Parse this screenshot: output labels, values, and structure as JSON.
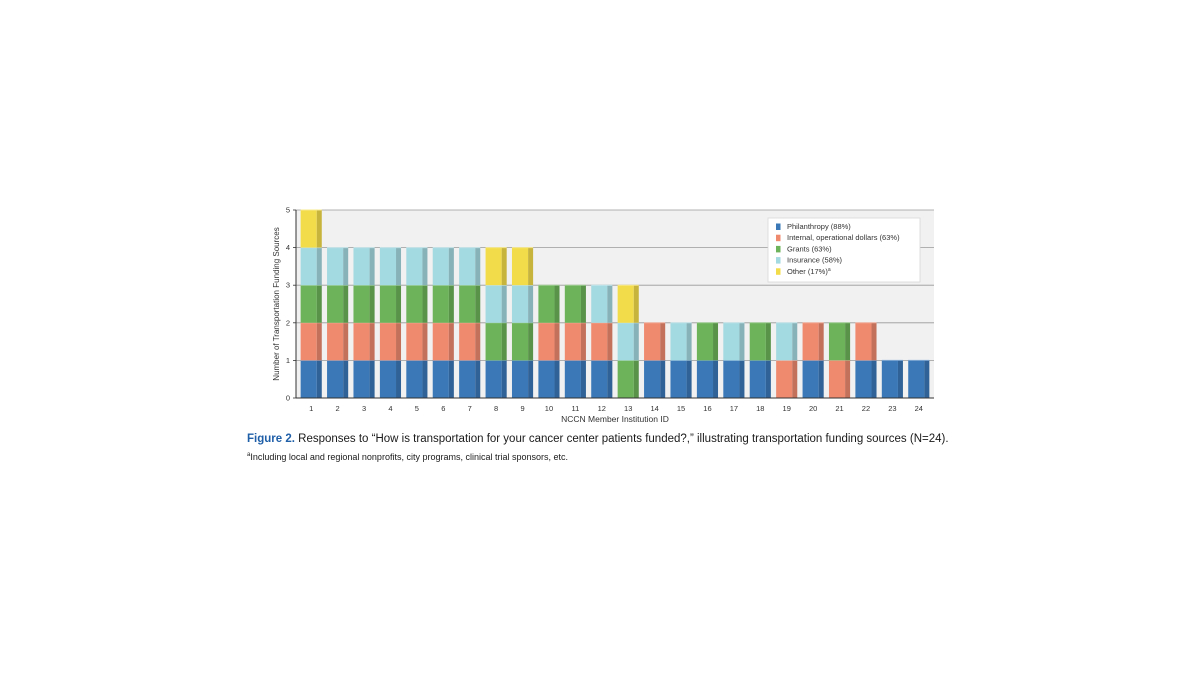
{
  "chart_data": {
    "type": "bar",
    "stacked": true,
    "ylabel": "Number of Transportation Funding Sources",
    "xlabel": "NCCN Member Institution ID",
    "ylim": [
      0,
      5
    ],
    "yticks": [
      "0",
      "1",
      "2",
      "3",
      "4",
      "5"
    ],
    "grid": true,
    "legend_position": "top-right",
    "categories": [
      "1",
      "2",
      "3",
      "4",
      "5",
      "6",
      "7",
      "8",
      "9",
      "10",
      "11",
      "12",
      "13",
      "14",
      "15",
      "16",
      "17",
      "18",
      "19",
      "20",
      "21",
      "22",
      "23",
      "24"
    ],
    "series": [
      {
        "name": "Philanthropy (88%)",
        "color": "#3a78b8",
        "values": [
          1,
          1,
          1,
          1,
          1,
          1,
          1,
          1,
          1,
          1,
          1,
          1,
          0,
          1,
          1,
          1,
          1,
          1,
          0,
          1,
          0,
          1,
          1,
          1
        ]
      },
      {
        "name": "Internal, operational dollars (63%)",
        "color": "#ef8a6f",
        "values": [
          1,
          1,
          1,
          1,
          1,
          1,
          1,
          0,
          0,
          1,
          1,
          1,
          0,
          1,
          0,
          0,
          0,
          0,
          1,
          1,
          1,
          1,
          0,
          0
        ]
      },
      {
        "name": "Grants (63%)",
        "color": "#6cb35a",
        "values": [
          1,
          1,
          1,
          1,
          1,
          1,
          1,
          1,
          1,
          1,
          1,
          0,
          1,
          0,
          0,
          1,
          0,
          1,
          0,
          0,
          1,
          0,
          0,
          0
        ]
      },
      {
        "name": "Insurance (58%)",
        "color": "#a3d9e0",
        "values": [
          1,
          1,
          1,
          1,
          1,
          1,
          1,
          1,
          1,
          0,
          0,
          1,
          1,
          0,
          1,
          0,
          1,
          0,
          1,
          0,
          0,
          0,
          0,
          0
        ]
      },
      {
        "name": "Other (17%)",
        "legend_suffix": "a",
        "color": "#f3dc4a",
        "values": [
          1,
          0,
          0,
          0,
          0,
          0,
          0,
          1,
          1,
          0,
          0,
          0,
          1,
          0,
          0,
          0,
          0,
          0,
          0,
          0,
          0,
          0,
          0,
          0
        ]
      }
    ]
  },
  "caption": {
    "label": "Figure 2.",
    "text": " Responses to “How is transportation for your cancer center patients funded?,” illustrating transportation funding sources (N=24)."
  },
  "footnote": {
    "marker": "a",
    "text": "Including local and regional nonprofits, city programs, clinical trial sponsors, etc."
  }
}
